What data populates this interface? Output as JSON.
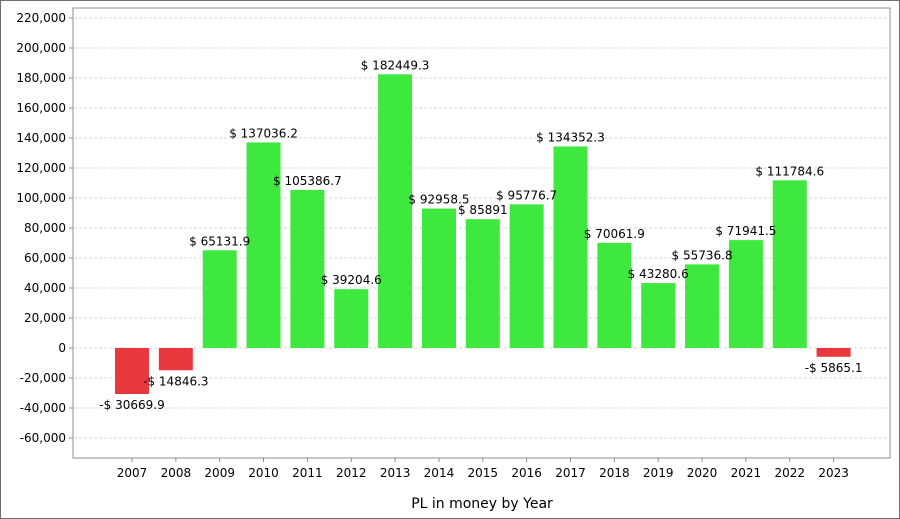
{
  "chart_data": {
    "type": "bar",
    "title": "",
    "xlabel": "PL in money by Year",
    "ylabel": "",
    "ylim": [
      -70000,
      225000
    ],
    "yticks": [
      220000,
      200000,
      180000,
      160000,
      140000,
      120000,
      100000,
      80000,
      60000,
      40000,
      20000,
      0,
      -20000,
      -40000,
      -60000
    ],
    "ytick_labels": [
      "220,000",
      "200,000",
      "180,000",
      "160,000",
      "140,000",
      "120,000",
      "100,000",
      "80,000",
      "60,000",
      "40,000",
      "20,000",
      "0",
      "-20,000",
      "-40,000",
      "-60,000"
    ],
    "grid": true,
    "legend": "none",
    "categories": [
      "2007",
      "2008",
      "2009",
      "2010",
      "2011",
      "2012",
      "2013",
      "2014",
      "2015",
      "2016",
      "2017",
      "2018",
      "2019",
      "2020",
      "2021",
      "2022",
      "2023"
    ],
    "values": [
      -30669.9,
      -14846.3,
      65131.9,
      137036.2,
      105386.7,
      39204.6,
      182449.3,
      92958.5,
      85891,
      95776.7,
      134352.3,
      70061.9,
      43280.6,
      55736.8,
      71941.5,
      111784.6,
      -5865.1
    ],
    "data_labels": [
      "-$ 30669.9",
      "-$ 14846.3",
      "$ 65131.9",
      "$ 137036.2",
      "$ 105386.7",
      "$ 39204.6",
      "$ 182449.3",
      "$ 92958.5",
      "$ 85891",
      "$ 95776.7",
      "$ 134352.3",
      "$ 70061.9",
      "$ 43280.6",
      "$ 55736.8",
      "$ 71941.5",
      "$ 111784.6",
      "-$ 5865.1"
    ],
    "colors": {
      "positive": "#3ee83e",
      "negative": "#e8383d",
      "grid": "#d8d8d8",
      "axis": "#8c8c8c"
    }
  }
}
